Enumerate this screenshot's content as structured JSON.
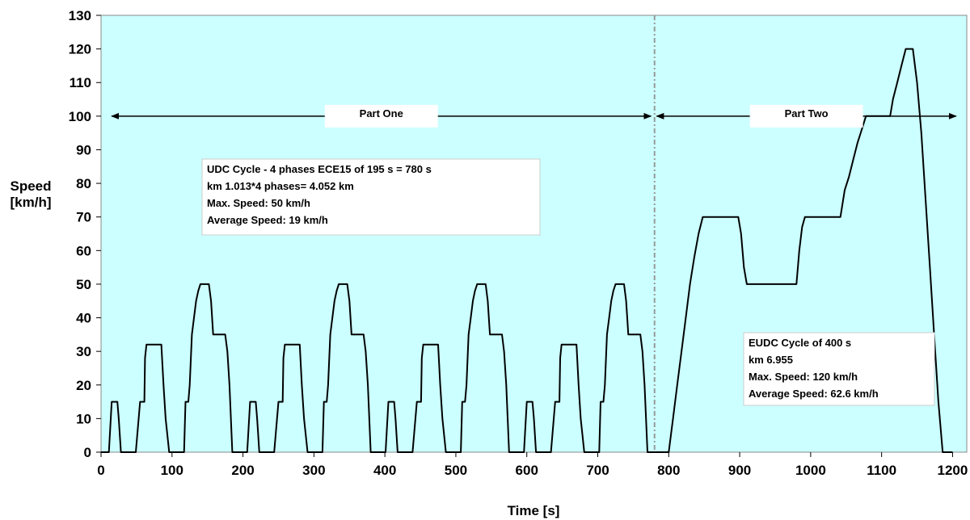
{
  "chart_data": {
    "type": "line",
    "title": "",
    "xlabel": "Time [s]",
    "ylabel_line1": "Speed",
    "ylabel_line2": "[km/h]",
    "xlim": [
      0,
      1220
    ],
    "ylim": [
      0,
      130
    ],
    "x_ticks": [
      "0",
      "100",
      "200",
      "300",
      "400",
      "500",
      "600",
      "700",
      "800",
      "900",
      "1000",
      "1100",
      "1200"
    ],
    "y_ticks": [
      "0",
      "10",
      "20",
      "30",
      "40",
      "50",
      "60",
      "70",
      "80",
      "90",
      "100",
      "110",
      "120",
      "130"
    ],
    "grid": false,
    "background_color": "#ccffff",
    "line_color": "#000000",
    "series": [
      {
        "points": [
          [
            0,
            0
          ],
          [
            11,
            0
          ],
          [
            15,
            15
          ],
          [
            23,
            15
          ],
          [
            25,
            10
          ],
          [
            28,
            0
          ],
          [
            49,
            0
          ],
          [
            55,
            15
          ],
          [
            61,
            15
          ],
          [
            62,
            28
          ],
          [
            64,
            32
          ],
          [
            85,
            32
          ],
          [
            88,
            20
          ],
          [
            91,
            10
          ],
          [
            96,
            0
          ],
          [
            117,
            0
          ],
          [
            119,
            15
          ],
          [
            123,
            15
          ],
          [
            125,
            20
          ],
          [
            128,
            35
          ],
          [
            131,
            40
          ],
          [
            134,
            45
          ],
          [
            137,
            48
          ],
          [
            140,
            50
          ],
          [
            152,
            50
          ],
          [
            155,
            45
          ],
          [
            158,
            35
          ],
          [
            175,
            35
          ],
          [
            178,
            30
          ],
          [
            181,
            20
          ],
          [
            185,
            0
          ],
          [
            195,
            0
          ],
          [
            206,
            0
          ],
          [
            210,
            15
          ],
          [
            218,
            15
          ],
          [
            220,
            10
          ],
          [
            223,
            0
          ],
          [
            244,
            0
          ],
          [
            250,
            15
          ],
          [
            256,
            15
          ],
          [
            257,
            28
          ],
          [
            259,
            32
          ],
          [
            280,
            32
          ],
          [
            283,
            20
          ],
          [
            286,
            10
          ],
          [
            291,
            0
          ],
          [
            312,
            0
          ],
          [
            314,
            15
          ],
          [
            318,
            15
          ],
          [
            320,
            20
          ],
          [
            323,
            35
          ],
          [
            326,
            40
          ],
          [
            329,
            45
          ],
          [
            332,
            48
          ],
          [
            335,
            50
          ],
          [
            347,
            50
          ],
          [
            350,
            45
          ],
          [
            353,
            35
          ],
          [
            370,
            35
          ],
          [
            373,
            30
          ],
          [
            376,
            20
          ],
          [
            380,
            0
          ],
          [
            390,
            0
          ],
          [
            401,
            0
          ],
          [
            405,
            15
          ],
          [
            413,
            15
          ],
          [
            415,
            10
          ],
          [
            418,
            0
          ],
          [
            439,
            0
          ],
          [
            445,
            15
          ],
          [
            451,
            15
          ],
          [
            452,
            28
          ],
          [
            454,
            32
          ],
          [
            475,
            32
          ],
          [
            478,
            20
          ],
          [
            481,
            10
          ],
          [
            486,
            0
          ],
          [
            507,
            0
          ],
          [
            509,
            15
          ],
          [
            513,
            15
          ],
          [
            515,
            20
          ],
          [
            518,
            35
          ],
          [
            521,
            40
          ],
          [
            524,
            45
          ],
          [
            527,
            48
          ],
          [
            530,
            50
          ],
          [
            542,
            50
          ],
          [
            545,
            45
          ],
          [
            548,
            35
          ],
          [
            565,
            35
          ],
          [
            568,
            30
          ],
          [
            571,
            20
          ],
          [
            575,
            0
          ],
          [
            585,
            0
          ],
          [
            596,
            0
          ],
          [
            600,
            15
          ],
          [
            608,
            15
          ],
          [
            610,
            10
          ],
          [
            613,
            0
          ],
          [
            634,
            0
          ],
          [
            640,
            15
          ],
          [
            646,
            15
          ],
          [
            647,
            28
          ],
          [
            649,
            32
          ],
          [
            670,
            32
          ],
          [
            673,
            20
          ],
          [
            676,
            10
          ],
          [
            681,
            0
          ],
          [
            702,
            0
          ],
          [
            704,
            15
          ],
          [
            708,
            15
          ],
          [
            710,
            20
          ],
          [
            713,
            35
          ],
          [
            716,
            40
          ],
          [
            719,
            45
          ],
          [
            722,
            48
          ],
          [
            725,
            50
          ],
          [
            737,
            50
          ],
          [
            740,
            45
          ],
          [
            743,
            35
          ],
          [
            760,
            35
          ],
          [
            763,
            30
          ],
          [
            766,
            20
          ],
          [
            770,
            0
          ],
          [
            800,
            0
          ],
          [
            806,
            10
          ],
          [
            812,
            20
          ],
          [
            818,
            30
          ],
          [
            824,
            40
          ],
          [
            830,
            50
          ],
          [
            836,
            58
          ],
          [
            842,
            65
          ],
          [
            848,
            70
          ],
          [
            898,
            70
          ],
          [
            902,
            65
          ],
          [
            906,
            55
          ],
          [
            910,
            50
          ],
          [
            980,
            50
          ],
          [
            984,
            60
          ],
          [
            988,
            67
          ],
          [
            992,
            70
          ],
          [
            1042,
            70
          ],
          [
            1048,
            78
          ],
          [
            1054,
            82
          ],
          [
            1060,
            87
          ],
          [
            1066,
            92
          ],
          [
            1072,
            96
          ],
          [
            1078,
            100
          ],
          [
            1112,
            100
          ],
          [
            1116,
            105
          ],
          [
            1122,
            110
          ],
          [
            1128,
            115
          ],
          [
            1134,
            120
          ],
          [
            1144,
            120
          ],
          [
            1150,
            110
          ],
          [
            1156,
            95
          ],
          [
            1162,
            75
          ],
          [
            1168,
            55
          ],
          [
            1174,
            35
          ],
          [
            1180,
            15
          ],
          [
            1186,
            0
          ],
          [
            1200,
            0
          ]
        ]
      }
    ],
    "divider_x": 780,
    "annotations": {
      "part_one": {
        "label": "Part One",
        "y": 100,
        "x_from": 15,
        "x_to": 775
      },
      "part_two": {
        "label": "Part Two",
        "y": 100,
        "x_from": 783,
        "x_to": 1205
      },
      "udc_box": {
        "lines": [
          "UDC Cycle - 4 phases ECE15 of 195 s = 780 s",
          "km 1.013*4 phases= 4.052 km",
          "Max. Speed: 50 km/h",
          "Average Speed: 19 km/h"
        ]
      },
      "eudc_box": {
        "lines": [
          "EUDC Cycle of 400 s",
          "km 6.955",
          "Max. Speed: 120 km/h",
          "Average Speed: 62.6 km/h"
        ]
      }
    }
  }
}
